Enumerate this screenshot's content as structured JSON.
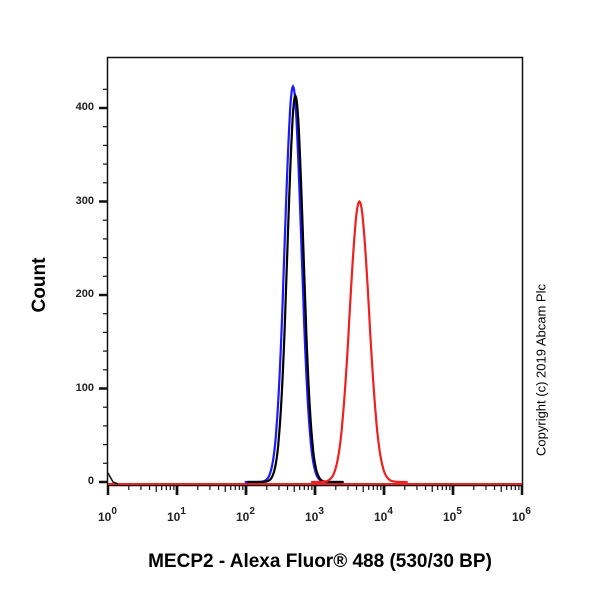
{
  "chart_data": {
    "type": "line",
    "title": "",
    "xlabel": "MECP2 - Alexa Fluor® 488 (530/30 BP)",
    "ylabel": "Count",
    "xscale": "log",
    "xlim": [
      1,
      1000000
    ],
    "ylim": [
      0,
      440
    ],
    "x_tick_labels": [
      "10^0",
      "10^1",
      "10^2",
      "10^3",
      "10^4",
      "10^5",
      "10^6"
    ],
    "y_ticks": [
      0,
      100,
      200,
      300,
      400
    ],
    "grid": false,
    "legend": "none",
    "series": [
      {
        "name": "blue",
        "color": "#1a1aff",
        "peak_x": 480,
        "peak_y": 423,
        "log_sigma": 0.12
      },
      {
        "name": "black",
        "color": "#000000",
        "peak_x": 520,
        "peak_y": 413,
        "log_sigma": 0.115
      },
      {
        "name": "red",
        "color": "#ee2020",
        "peak_x": 4400,
        "peak_y": 300,
        "log_sigma": 0.14
      }
    ],
    "annotations": [
      "Copyright (c) 2019 Abcam Plc"
    ]
  },
  "labels": {
    "ylabel": "Count",
    "xlabel": "MECP2 - Alexa Fluor® 488 (530/30 BP)",
    "copyright": "Copyright (c) 2019 Abcam Plc",
    "yticks": [
      "0",
      "100",
      "200",
      "300",
      "400"
    ],
    "xticks": [
      {
        "base": "10",
        "exp": "0"
      },
      {
        "base": "10",
        "exp": "1"
      },
      {
        "base": "10",
        "exp": "2"
      },
      {
        "base": "10",
        "exp": "3"
      },
      {
        "base": "10",
        "exp": "4"
      },
      {
        "base": "10",
        "exp": "5"
      },
      {
        "base": "10",
        "exp": "6"
      }
    ]
  }
}
